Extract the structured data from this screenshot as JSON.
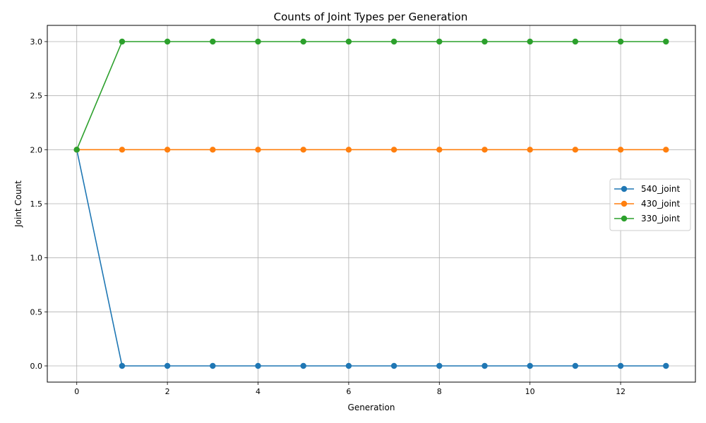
{
  "chart_data": {
    "type": "line",
    "title": "Counts of Joint Types per Generation",
    "xlabel": "Generation",
    "ylabel": "Joint Count",
    "x": [
      0,
      1,
      2,
      3,
      4,
      5,
      6,
      7,
      8,
      9,
      10,
      11,
      12,
      13
    ],
    "xlim": [
      -0.65,
      13.65
    ],
    "ylim": [
      -0.15,
      3.15
    ],
    "xticks": [
      0,
      2,
      4,
      6,
      8,
      10,
      12
    ],
    "xtick_labels": [
      "0",
      "2",
      "4",
      "6",
      "8",
      "10",
      "12"
    ],
    "yticks": [
      0,
      0.5,
      1,
      1.5,
      2,
      2.5,
      3
    ],
    "ytick_labels": [
      "0.0",
      "0.5",
      "1.0",
      "1.5",
      "2.0",
      "2.5",
      "3.0"
    ],
    "grid": true,
    "legend_position": "center-right",
    "series": [
      {
        "name": "540_joint",
        "color": "#1f77b4",
        "values": [
          2,
          0,
          0,
          0,
          0,
          0,
          0,
          0,
          0,
          0,
          0,
          0,
          0,
          0
        ]
      },
      {
        "name": "430_joint",
        "color": "#ff7f0e",
        "values": [
          2,
          2,
          2,
          2,
          2,
          2,
          2,
          2,
          2,
          2,
          2,
          2,
          2,
          2
        ]
      },
      {
        "name": "330_joint",
        "color": "#2ca02c",
        "values": [
          2,
          3,
          3,
          3,
          3,
          3,
          3,
          3,
          3,
          3,
          3,
          3,
          3,
          3
        ]
      }
    ]
  }
}
